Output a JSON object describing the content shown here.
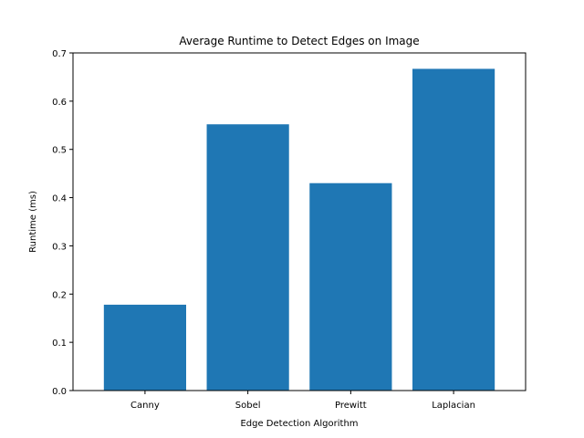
{
  "chart_data": {
    "type": "bar",
    "title": "Average Runtime to Detect Edges on Image",
    "xlabel": "Edge Detection Algorithm",
    "ylabel": "Runtime (ms)",
    "categories": [
      "Canny",
      "Sobel",
      "Prewitt",
      "Laplacian"
    ],
    "values": [
      0.178,
      0.552,
      0.43,
      0.667
    ],
    "ylim": [
      0,
      0.7
    ],
    "yticks": [
      0.0,
      0.1,
      0.2,
      0.3,
      0.4,
      0.5,
      0.6,
      0.7
    ],
    "ytick_labels": [
      "0.0",
      "0.1",
      "0.2",
      "0.3",
      "0.4",
      "0.5",
      "0.6",
      "0.7"
    ],
    "grid": false,
    "bar_color": "#1f77b4"
  }
}
